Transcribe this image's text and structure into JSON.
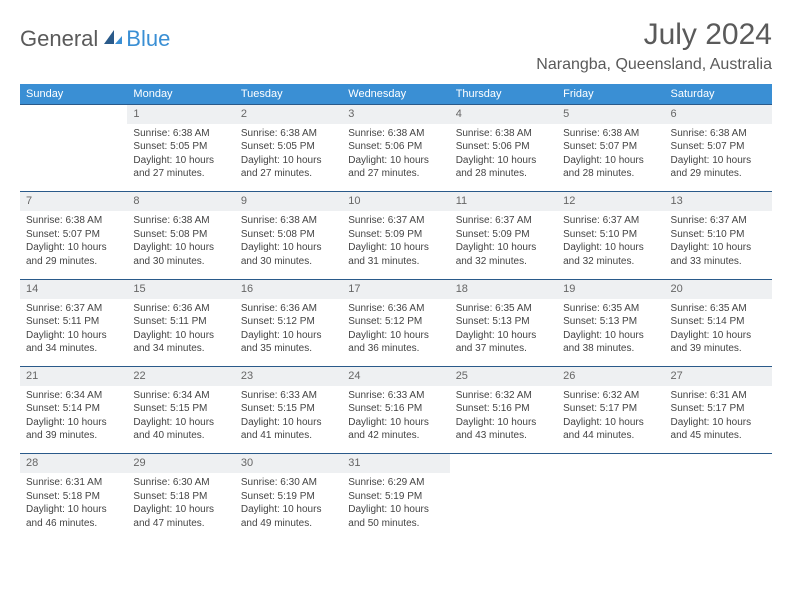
{
  "logo": {
    "part1": "General",
    "part2": "Blue"
  },
  "title": "July 2024",
  "location": "Narangba, Queensland, Australia",
  "colors": {
    "header_bg": "#3a8fd4",
    "header_text": "#ffffff",
    "daynum_bg": "#eef0f2",
    "border": "#2a5a8a",
    "text": "#444444",
    "title_text": "#5a5a5a"
  },
  "day_headers": [
    "Sunday",
    "Monday",
    "Tuesday",
    "Wednesday",
    "Thursday",
    "Friday",
    "Saturday"
  ],
  "weeks": [
    {
      "nums": [
        "",
        "1",
        "2",
        "3",
        "4",
        "5",
        "6"
      ],
      "cells": [
        null,
        {
          "sunrise": "Sunrise: 6:38 AM",
          "sunset": "Sunset: 5:05 PM",
          "day1": "Daylight: 10 hours",
          "day2": "and 27 minutes."
        },
        {
          "sunrise": "Sunrise: 6:38 AM",
          "sunset": "Sunset: 5:05 PM",
          "day1": "Daylight: 10 hours",
          "day2": "and 27 minutes."
        },
        {
          "sunrise": "Sunrise: 6:38 AM",
          "sunset": "Sunset: 5:06 PM",
          "day1": "Daylight: 10 hours",
          "day2": "and 27 minutes."
        },
        {
          "sunrise": "Sunrise: 6:38 AM",
          "sunset": "Sunset: 5:06 PM",
          "day1": "Daylight: 10 hours",
          "day2": "and 28 minutes."
        },
        {
          "sunrise": "Sunrise: 6:38 AM",
          "sunset": "Sunset: 5:07 PM",
          "day1": "Daylight: 10 hours",
          "day2": "and 28 minutes."
        },
        {
          "sunrise": "Sunrise: 6:38 AM",
          "sunset": "Sunset: 5:07 PM",
          "day1": "Daylight: 10 hours",
          "day2": "and 29 minutes."
        }
      ]
    },
    {
      "nums": [
        "7",
        "8",
        "9",
        "10",
        "11",
        "12",
        "13"
      ],
      "cells": [
        {
          "sunrise": "Sunrise: 6:38 AM",
          "sunset": "Sunset: 5:07 PM",
          "day1": "Daylight: 10 hours",
          "day2": "and 29 minutes."
        },
        {
          "sunrise": "Sunrise: 6:38 AM",
          "sunset": "Sunset: 5:08 PM",
          "day1": "Daylight: 10 hours",
          "day2": "and 30 minutes."
        },
        {
          "sunrise": "Sunrise: 6:38 AM",
          "sunset": "Sunset: 5:08 PM",
          "day1": "Daylight: 10 hours",
          "day2": "and 30 minutes."
        },
        {
          "sunrise": "Sunrise: 6:37 AM",
          "sunset": "Sunset: 5:09 PM",
          "day1": "Daylight: 10 hours",
          "day2": "and 31 minutes."
        },
        {
          "sunrise": "Sunrise: 6:37 AM",
          "sunset": "Sunset: 5:09 PM",
          "day1": "Daylight: 10 hours",
          "day2": "and 32 minutes."
        },
        {
          "sunrise": "Sunrise: 6:37 AM",
          "sunset": "Sunset: 5:10 PM",
          "day1": "Daylight: 10 hours",
          "day2": "and 32 minutes."
        },
        {
          "sunrise": "Sunrise: 6:37 AM",
          "sunset": "Sunset: 5:10 PM",
          "day1": "Daylight: 10 hours",
          "day2": "and 33 minutes."
        }
      ]
    },
    {
      "nums": [
        "14",
        "15",
        "16",
        "17",
        "18",
        "19",
        "20"
      ],
      "cells": [
        {
          "sunrise": "Sunrise: 6:37 AM",
          "sunset": "Sunset: 5:11 PM",
          "day1": "Daylight: 10 hours",
          "day2": "and 34 minutes."
        },
        {
          "sunrise": "Sunrise: 6:36 AM",
          "sunset": "Sunset: 5:11 PM",
          "day1": "Daylight: 10 hours",
          "day2": "and 34 minutes."
        },
        {
          "sunrise": "Sunrise: 6:36 AM",
          "sunset": "Sunset: 5:12 PM",
          "day1": "Daylight: 10 hours",
          "day2": "and 35 minutes."
        },
        {
          "sunrise": "Sunrise: 6:36 AM",
          "sunset": "Sunset: 5:12 PM",
          "day1": "Daylight: 10 hours",
          "day2": "and 36 minutes."
        },
        {
          "sunrise": "Sunrise: 6:35 AM",
          "sunset": "Sunset: 5:13 PM",
          "day1": "Daylight: 10 hours",
          "day2": "and 37 minutes."
        },
        {
          "sunrise": "Sunrise: 6:35 AM",
          "sunset": "Sunset: 5:13 PM",
          "day1": "Daylight: 10 hours",
          "day2": "and 38 minutes."
        },
        {
          "sunrise": "Sunrise: 6:35 AM",
          "sunset": "Sunset: 5:14 PM",
          "day1": "Daylight: 10 hours",
          "day2": "and 39 minutes."
        }
      ]
    },
    {
      "nums": [
        "21",
        "22",
        "23",
        "24",
        "25",
        "26",
        "27"
      ],
      "cells": [
        {
          "sunrise": "Sunrise: 6:34 AM",
          "sunset": "Sunset: 5:14 PM",
          "day1": "Daylight: 10 hours",
          "day2": "and 39 minutes."
        },
        {
          "sunrise": "Sunrise: 6:34 AM",
          "sunset": "Sunset: 5:15 PM",
          "day1": "Daylight: 10 hours",
          "day2": "and 40 minutes."
        },
        {
          "sunrise": "Sunrise: 6:33 AM",
          "sunset": "Sunset: 5:15 PM",
          "day1": "Daylight: 10 hours",
          "day2": "and 41 minutes."
        },
        {
          "sunrise": "Sunrise: 6:33 AM",
          "sunset": "Sunset: 5:16 PM",
          "day1": "Daylight: 10 hours",
          "day2": "and 42 minutes."
        },
        {
          "sunrise": "Sunrise: 6:32 AM",
          "sunset": "Sunset: 5:16 PM",
          "day1": "Daylight: 10 hours",
          "day2": "and 43 minutes."
        },
        {
          "sunrise": "Sunrise: 6:32 AM",
          "sunset": "Sunset: 5:17 PM",
          "day1": "Daylight: 10 hours",
          "day2": "and 44 minutes."
        },
        {
          "sunrise": "Sunrise: 6:31 AM",
          "sunset": "Sunset: 5:17 PM",
          "day1": "Daylight: 10 hours",
          "day2": "and 45 minutes."
        }
      ]
    },
    {
      "nums": [
        "28",
        "29",
        "30",
        "31",
        "",
        "",
        ""
      ],
      "cells": [
        {
          "sunrise": "Sunrise: 6:31 AM",
          "sunset": "Sunset: 5:18 PM",
          "day1": "Daylight: 10 hours",
          "day2": "and 46 minutes."
        },
        {
          "sunrise": "Sunrise: 6:30 AM",
          "sunset": "Sunset: 5:18 PM",
          "day1": "Daylight: 10 hours",
          "day2": "and 47 minutes."
        },
        {
          "sunrise": "Sunrise: 6:30 AM",
          "sunset": "Sunset: 5:19 PM",
          "day1": "Daylight: 10 hours",
          "day2": "and 49 minutes."
        },
        {
          "sunrise": "Sunrise: 6:29 AM",
          "sunset": "Sunset: 5:19 PM",
          "day1": "Daylight: 10 hours",
          "day2": "and 50 minutes."
        },
        null,
        null,
        null
      ]
    }
  ]
}
